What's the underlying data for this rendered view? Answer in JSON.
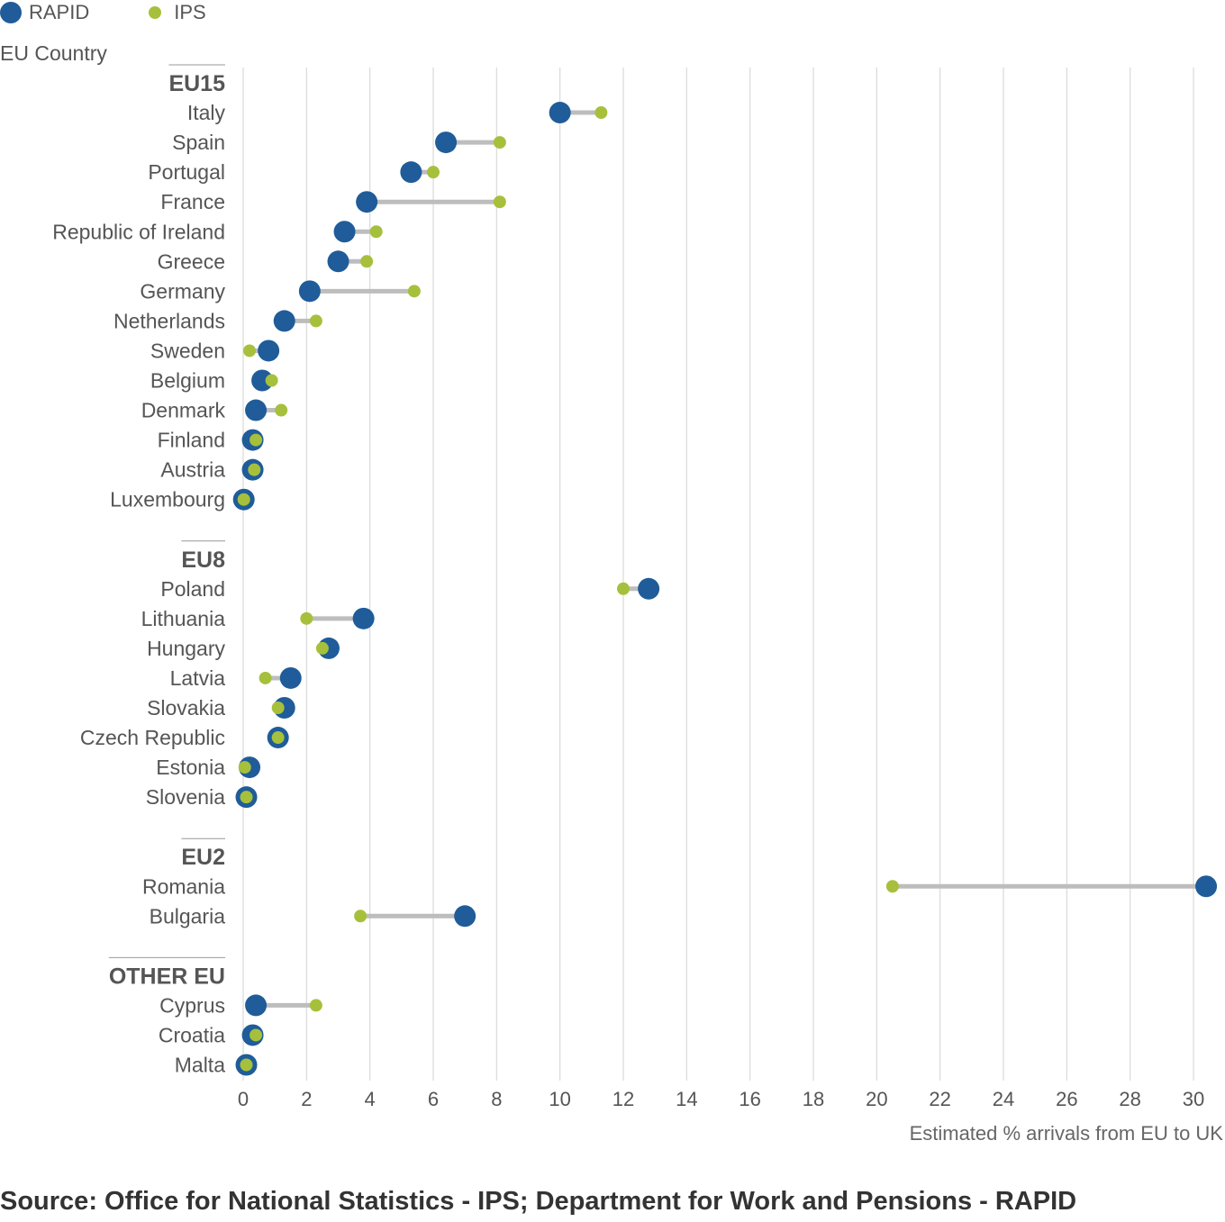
{
  "legend": {
    "rapid_label": "RAPID",
    "ips_label": "IPS"
  },
  "y_title": "EU Country",
  "x_title": "Estimated % arrivals from EU to UK",
  "source": "Source: Office for National Statistics - IPS; Department for Work and Pensions - RAPID",
  "colors": {
    "rapid": "#1f5c99",
    "ips": "#a6c03c",
    "connector": "#bdbdbd",
    "grid": "#d9d9d9"
  },
  "chart_data": {
    "type": "scatter",
    "xlim": [
      0,
      30
    ],
    "x_ticks": [
      0,
      2,
      4,
      6,
      8,
      10,
      12,
      14,
      16,
      18,
      20,
      22,
      24,
      26,
      28,
      30
    ],
    "grid": "vertical",
    "legend_position": "top-left",
    "series": [
      {
        "name": "RAPID"
      },
      {
        "name": "IPS"
      }
    ],
    "groups": [
      {
        "name": "EU15",
        "countries": [
          {
            "name": "Italy",
            "rapid": 10.0,
            "ips": 11.3
          },
          {
            "name": "Spain",
            "rapid": 6.4,
            "ips": 8.1
          },
          {
            "name": "Portugal",
            "rapid": 5.3,
            "ips": 6.0
          },
          {
            "name": "France",
            "rapid": 3.9,
            "ips": 8.1
          },
          {
            "name": "Republic of Ireland",
            "rapid": 3.2,
            "ips": 4.2
          },
          {
            "name": "Greece",
            "rapid": 3.0,
            "ips": 3.9
          },
          {
            "name": "Germany",
            "rapid": 2.1,
            "ips": 5.4
          },
          {
            "name": "Netherlands",
            "rapid": 1.3,
            "ips": 2.3
          },
          {
            "name": "Sweden",
            "rapid": 0.8,
            "ips": 0.2
          },
          {
            "name": "Belgium",
            "rapid": 0.6,
            "ips": 0.9
          },
          {
            "name": "Denmark",
            "rapid": 0.4,
            "ips": 1.2
          },
          {
            "name": "Finland",
            "rapid": 0.3,
            "ips": 0.4
          },
          {
            "name": "Austria",
            "rapid": 0.3,
            "ips": 0.35
          },
          {
            "name": "Luxembourg",
            "rapid": 0.02,
            "ips": 0.02
          }
        ]
      },
      {
        "name": "EU8",
        "countries": [
          {
            "name": "Poland",
            "rapid": 12.8,
            "ips": 12.0
          },
          {
            "name": "Lithuania",
            "rapid": 3.8,
            "ips": 2.0
          },
          {
            "name": "Hungary",
            "rapid": 2.7,
            "ips": 2.5
          },
          {
            "name": "Latvia",
            "rapid": 1.5,
            "ips": 0.7
          },
          {
            "name": "Slovakia",
            "rapid": 1.3,
            "ips": 1.1
          },
          {
            "name": "Czech Republic",
            "rapid": 1.1,
            "ips": 1.1
          },
          {
            "name": "Estonia",
            "rapid": 0.2,
            "ips": 0.05
          },
          {
            "name": "Slovenia",
            "rapid": 0.1,
            "ips": 0.1
          }
        ]
      },
      {
        "name": "EU2",
        "countries": [
          {
            "name": "Romania",
            "rapid": 30.4,
            "ips": 20.5
          },
          {
            "name": "Bulgaria",
            "rapid": 7.0,
            "ips": 3.7
          }
        ]
      },
      {
        "name": "OTHER EU",
        "countries": [
          {
            "name": "Cyprus",
            "rapid": 0.4,
            "ips": 2.3
          },
          {
            "name": "Croatia",
            "rapid": 0.3,
            "ips": 0.4
          },
          {
            "name": "Malta",
            "rapid": 0.1,
            "ips": 0.1
          }
        ]
      }
    ]
  }
}
